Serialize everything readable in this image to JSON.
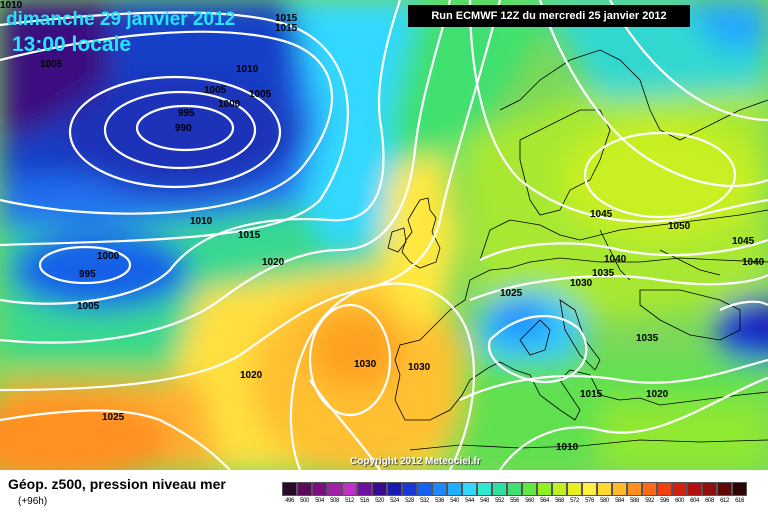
{
  "header": {
    "date": "dimanche 29 janvier 2012",
    "time": "13:00 locale"
  },
  "run_info": "Run ECMWF 12Z du mercredi 25 janvier 2012",
  "copyright": "Copyright 2012 Meteociel.fr",
  "footer": {
    "title": "Géop. z500, pression niveau mer",
    "subtitle": "(+96h)"
  },
  "legend": [
    {
      "label": "496",
      "color": "#2a0a2a"
    },
    {
      "label": "500",
      "color": "#5a0a5a"
    },
    {
      "label": "504",
      "color": "#7a1080"
    },
    {
      "label": "508",
      "color": "#a020a8"
    },
    {
      "label": "512",
      "color": "#c030c8"
    },
    {
      "label": "516",
      "color": "#7010a0"
    },
    {
      "label": "520",
      "color": "#3a0a90"
    },
    {
      "label": "524",
      "color": "#1a1ab0"
    },
    {
      "label": "528",
      "color": "#1838d8"
    },
    {
      "label": "532",
      "color": "#1860f0"
    },
    {
      "label": "536",
      "color": "#2088ff"
    },
    {
      "label": "540",
      "color": "#20b0ff"
    },
    {
      "label": "544",
      "color": "#30d8ff"
    },
    {
      "label": "548",
      "color": "#30e8d0"
    },
    {
      "label": "552",
      "color": "#30e0a0"
    },
    {
      "label": "556",
      "color": "#40e070"
    },
    {
      "label": "560",
      "color": "#60e840"
    },
    {
      "label": "564",
      "color": "#90f020"
    },
    {
      "label": "568",
      "color": "#c0f020"
    },
    {
      "label": "572",
      "color": "#e8f020"
    },
    {
      "label": "576",
      "color": "#fff040"
    },
    {
      "label": "580",
      "color": "#ffd830"
    },
    {
      "label": "584",
      "color": "#ffb828"
    },
    {
      "label": "588",
      "color": "#ff9020"
    },
    {
      "label": "592",
      "color": "#ff6818"
    },
    {
      "label": "596",
      "color": "#f04010"
    },
    {
      "label": "600",
      "color": "#d02010"
    },
    {
      "label": "604",
      "color": "#b01010"
    },
    {
      "label": "608",
      "color": "#901010"
    },
    {
      "label": "612",
      "color": "#600808"
    },
    {
      "label": "616",
      "color": "#300404"
    }
  ],
  "isobar_labels": [
    {
      "text": "1010"
    },
    {
      "text": "1015"
    },
    {
      "text": "1015"
    },
    {
      "text": "1005"
    },
    {
      "text": "1010"
    },
    {
      "text": "1005"
    },
    {
      "text": "1005"
    },
    {
      "text": "1000"
    },
    {
      "text": "995"
    },
    {
      "text": "990"
    },
    {
      "text": "1010"
    },
    {
      "text": "1015"
    },
    {
      "text": "1020"
    },
    {
      "text": "1000"
    },
    {
      "text": "995"
    },
    {
      "text": "1005"
    },
    {
      "text": "1020"
    },
    {
      "text": "1030"
    },
    {
      "text": "1030"
    },
    {
      "text": "1025"
    },
    {
      "text": "1025"
    },
    {
      "text": "1030"
    },
    {
      "text": "1035"
    },
    {
      "text": "1040"
    },
    {
      "text": "1045"
    },
    {
      "text": "1050"
    },
    {
      "text": "1045"
    },
    {
      "text": "1040"
    },
    {
      "text": "1035"
    },
    {
      "text": "1015"
    },
    {
      "text": "1020"
    },
    {
      "text": "1010"
    }
  ]
}
